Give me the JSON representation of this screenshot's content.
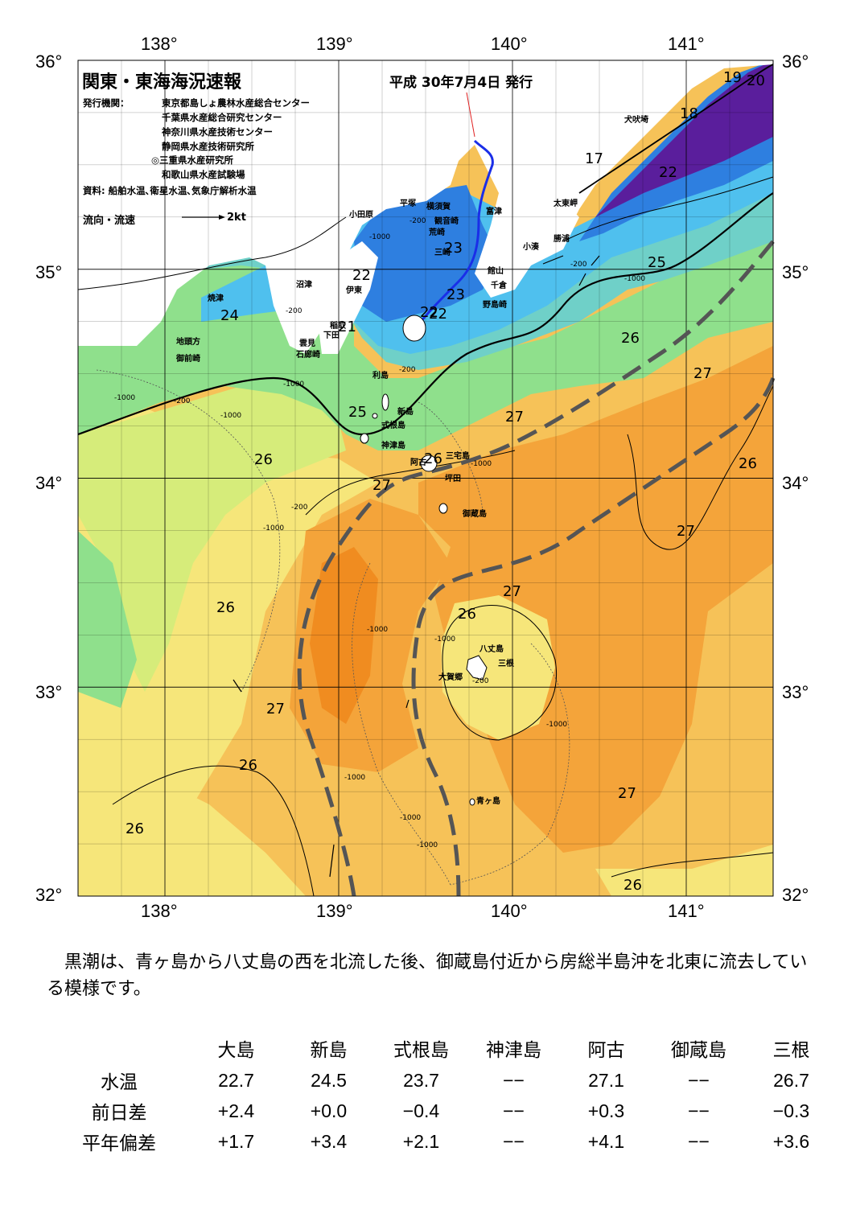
{
  "map": {
    "title": "関東・東海海況速報",
    "issue_date": "平成 30年7月4日 発行",
    "issuer_label": "発行機関：",
    "issuers": [
      "東京都島しょ農林水産総合センター",
      "千葉県水産総合研究センター",
      "神奈川県水産技術センター",
      "静岡県水産技術研究所",
      "◎三重県水産研究所",
      "和歌山県水産試験場"
    ],
    "sources": "資料: 船舶水温､衛星水温､気象庁解析水温",
    "flow_legend": "流向・流速",
    "flow_unit": "2kt",
    "lon_labels": [
      "138°",
      "139°",
      "140°",
      "141°"
    ],
    "lat_labels": [
      "36°",
      "35°",
      "34°",
      "33°",
      "32°"
    ],
    "lon_values": [
      138,
      139,
      140,
      141
    ],
    "lat_values": [
      36,
      35,
      34,
      33,
      32
    ],
    "extent": {
      "lon_min": 137.5,
      "lon_max": 141.5,
      "lat_min": 32,
      "lat_max": 36
    },
    "colors": {
      "land": "#ffffff",
      "deep_purple": "#5a1e9c",
      "blue": "#2e7fe0",
      "cyan": "#4fc0ee",
      "teal": "#6fd0c8",
      "green": "#8fe08c",
      "yellow_green": "#d6ec7a",
      "yellow": "#f6e67a",
      "light_orange": "#f6c258",
      "orange": "#f4a43a",
      "dark_orange": "#f08c20",
      "kuroshio": "#555555"
    },
    "place_names": [
      {
        "name": "犬吠埼"
      },
      {
        "name": "太東岬"
      },
      {
        "name": "勝浦"
      },
      {
        "name": "小湊"
      },
      {
        "name": "富津"
      },
      {
        "name": "横須賀"
      },
      {
        "name": "観音崎"
      },
      {
        "name": "平塚"
      },
      {
        "name": "荒崎"
      },
      {
        "name": "三崎"
      },
      {
        "name": "小田原"
      },
      {
        "name": "館山"
      },
      {
        "name": "千倉"
      },
      {
        "name": "野島崎"
      },
      {
        "name": "沼津"
      },
      {
        "name": "伊東"
      },
      {
        "name": "焼津"
      },
      {
        "name": "稲取"
      },
      {
        "name": "下田"
      },
      {
        "name": "雲見"
      },
      {
        "name": "石廊崎"
      },
      {
        "name": "地頭方"
      },
      {
        "name": "御前崎"
      },
      {
        "name": "利島"
      },
      {
        "name": "新島"
      },
      {
        "name": "式根島"
      },
      {
        "name": "神津島"
      },
      {
        "name": "三宅島"
      },
      {
        "name": "阿古"
      },
      {
        "name": "坪田"
      },
      {
        "name": "御蔵島"
      },
      {
        "name": "八丈島"
      },
      {
        "name": "三根"
      },
      {
        "name": "大賀郷"
      },
      {
        "name": "青ヶ島"
      }
    ],
    "isotherm_labels": [
      {
        "text": "19"
      },
      {
        "text": "20"
      },
      {
        "text": "18"
      },
      {
        "text": "17"
      },
      {
        "text": "22"
      },
      {
        "text": "23"
      },
      {
        "text": "25"
      },
      {
        "text": "22"
      },
      {
        "text": "23"
      },
      {
        "text": "22"
      },
      {
        "text": "22"
      },
      {
        "text": "21"
      },
      {
        "text": "24"
      },
      {
        "text": "26"
      },
      {
        "text": "27"
      },
      {
        "text": "25"
      },
      {
        "text": "27"
      },
      {
        "text": "26"
      },
      {
        "text": "26"
      },
      {
        "text": "27"
      },
      {
        "text": "26"
      },
      {
        "text": "27"
      },
      {
        "text": "27"
      },
      {
        "text": "26"
      },
      {
        "text": "26"
      },
      {
        "text": "27"
      },
      {
        "text": "26"
      },
      {
        "text": "27"
      },
      {
        "text": "26"
      },
      {
        "text": "26"
      }
    ],
    "depth_labels": [
      {
        "text": "-1000"
      },
      {
        "text": "-200"
      },
      {
        "text": "-200"
      },
      {
        "text": "-1000"
      },
      {
        "text": "-200"
      },
      {
        "text": "-1000"
      },
      {
        "text": "-200"
      },
      {
        "text": "-1000"
      },
      {
        "text": "-200"
      },
      {
        "text": "-1000"
      },
      {
        "text": "-1000"
      },
      {
        "text": "-200"
      },
      {
        "text": "-1000"
      },
      {
        "text": "-1000"
      },
      {
        "text": "-1000"
      },
      {
        "text": "-200"
      },
      {
        "text": "-1000"
      },
      {
        "text": "-1000"
      },
      {
        "text": "-1000"
      },
      {
        "text": "-1000"
      }
    ]
  },
  "summary": "黒潮は、青ヶ島から八丈島の西を北流した後、御蔵島付近から房総半島沖を北東に流去している模様です。",
  "stats": {
    "columns": [
      "大島",
      "新島",
      "式根島",
      "神津島",
      "阿古",
      "御蔵島",
      "三根"
    ],
    "rows": [
      {
        "label": "水温",
        "values": [
          "22.7",
          "24.5",
          "23.7",
          "−−",
          "27.1",
          "−−",
          "26.7"
        ]
      },
      {
        "label": "前日差",
        "values": [
          "+2.4",
          "+0.0",
          "−0.4",
          "−−",
          "+0.3",
          "−−",
          "−0.3"
        ]
      },
      {
        "label": "平年偏差",
        "values": [
          "+1.7",
          "+3.4",
          "+2.1",
          "−−",
          "+4.1",
          "−−",
          "+3.6"
        ]
      }
    ]
  }
}
